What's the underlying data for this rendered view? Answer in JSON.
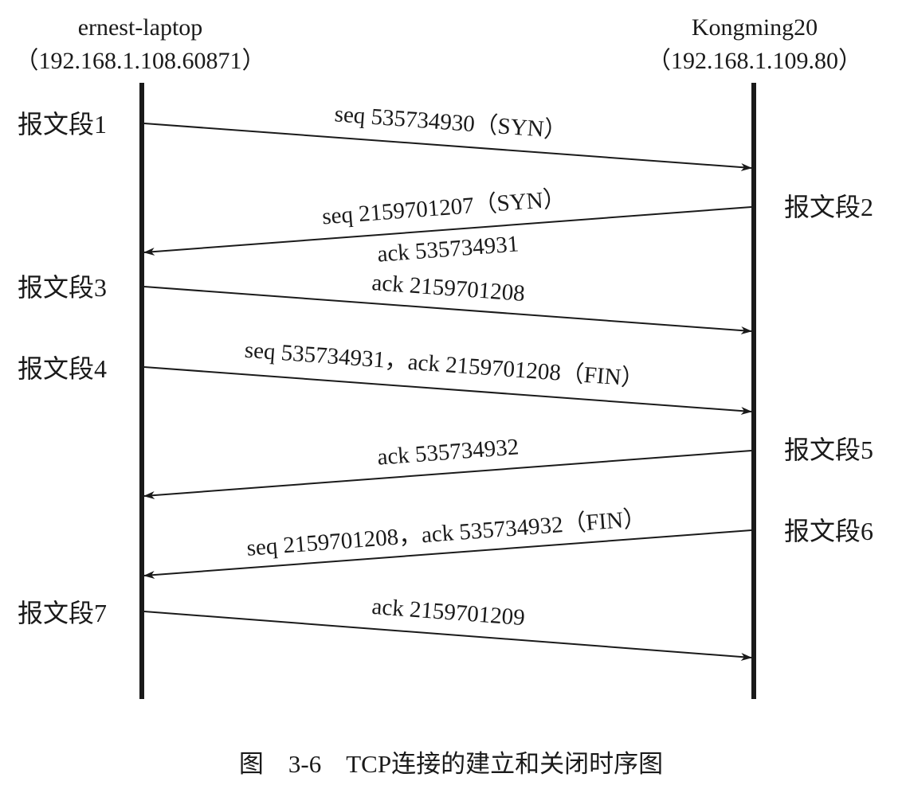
{
  "hosts": {
    "left": {
      "name": "ernest-laptop",
      "address": "（192.168.1.108.60871）"
    },
    "right": {
      "name": "Kongming20",
      "address": "（192.168.1.109.80）"
    }
  },
  "segments": [
    {
      "label": "报文段1",
      "from": "left",
      "lines": [
        "seq 535734930（SYN）"
      ]
    },
    {
      "label": "报文段2",
      "from": "right",
      "lines": [
        "seq 2159701207（SYN）",
        "ack 535734931"
      ]
    },
    {
      "label": "报文段3",
      "from": "left",
      "lines": [
        "ack 2159701208"
      ]
    },
    {
      "label": "报文段4",
      "from": "left",
      "lines": [
        "seq 535734931，ack 2159701208（FIN）"
      ]
    },
    {
      "label": "报文段5",
      "from": "right",
      "lines": [
        "ack 535734932"
      ]
    },
    {
      "label": "报文段6",
      "from": "right",
      "lines": [
        "seq 2159701208，ack 535734932（FIN）"
      ]
    },
    {
      "label": "报文段7",
      "from": "left",
      "lines": [
        "ack 2159701209"
      ]
    }
  ],
  "caption": "图　3-6　TCP连接的建立和关闭时序图",
  "colors": {
    "ink": "#1a1a1a",
    "background": "#ffffff"
  }
}
